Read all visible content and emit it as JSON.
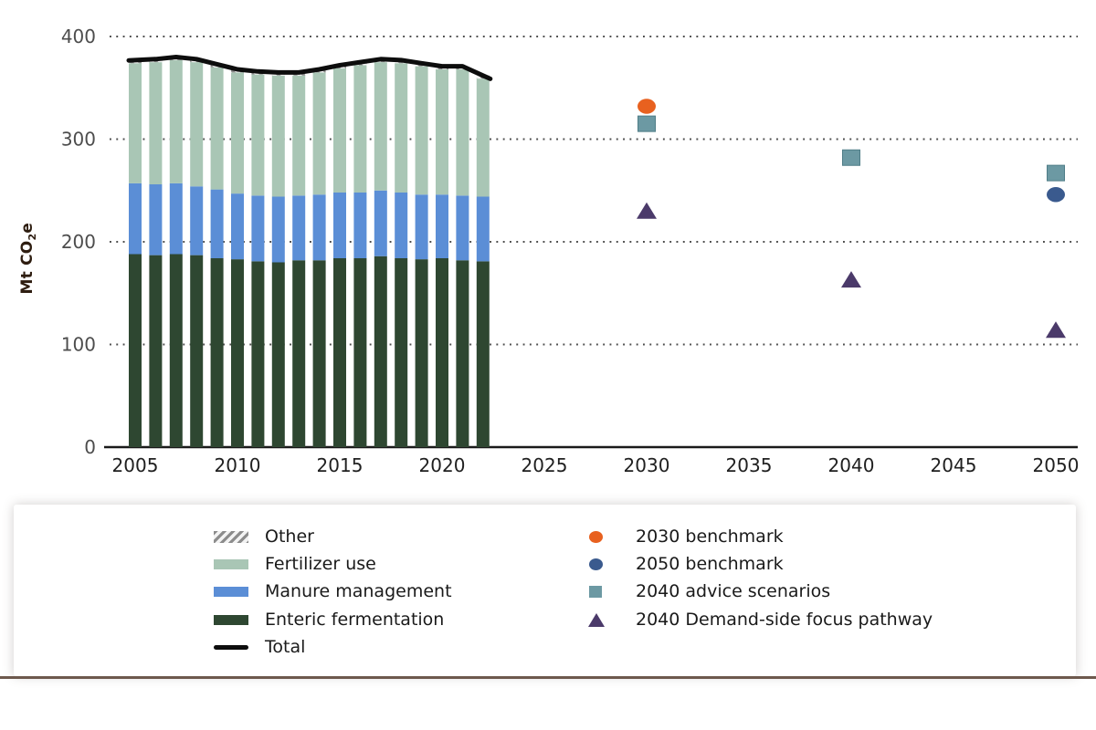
{
  "colors": {
    "enteric": "#2e4731",
    "manure": "#5b8ed6",
    "fertilizer": "#a9c6b5",
    "other_hatch": "#8c8c8c",
    "total_line": "#0d0d0d",
    "benchmark_2030": "#e8611f",
    "benchmark_2050": "#3a5a8e",
    "advice_2040": "#6c99a3",
    "advice_2040_border": "#4f7d87",
    "demand_side_2040": "#4b3a6a",
    "axis_line": "#1a1a1a",
    "grid_dots": "#4d4d4d",
    "y_tick_text": "#4d4d4d",
    "x_tick_text": "#202020",
    "bottom_rule": "#6d594d"
  },
  "y_axis_title": {
    "prefix": "Mt CO",
    "sub": "2",
    "suffix": "e"
  },
  "chart_data": {
    "type": "bar",
    "subtype": "stacked-bars-with-line-and-scatter",
    "ylabel": "Mt CO2e",
    "ylim": [
      0,
      400
    ],
    "xlim": [
      2003,
      2052
    ],
    "grid": "dotted horizontal at 100,200,300,400",
    "legend_position": "bottom card, two columns",
    "y_ticks": [
      400,
      300,
      200,
      100,
      0
    ],
    "x_ticks": [
      2005,
      2010,
      2015,
      2020,
      2025,
      2030,
      2035,
      2040,
      2045,
      2050
    ],
    "categories": [
      2005,
      2006,
      2007,
      2008,
      2009,
      2010,
      2011,
      2012,
      2013,
      2014,
      2015,
      2016,
      2017,
      2018,
      2019,
      2020,
      2021,
      2022
    ],
    "series": [
      {
        "name": "Enteric fermentation",
        "colorKey": "enteric",
        "values": [
          188,
          187,
          188,
          187,
          184,
          183,
          181,
          180,
          182,
          182,
          184,
          184,
          186,
          184,
          183,
          184,
          182,
          181
        ]
      },
      {
        "name": "Manure management",
        "colorKey": "manure",
        "values": [
          69,
          69,
          69,
          67,
          67,
          64,
          64,
          64,
          63,
          64,
          64,
          64,
          64,
          64,
          63,
          62,
          63,
          63
        ]
      },
      {
        "name": "Fertilizer use",
        "colorKey": "fertilizer",
        "values": [
          117,
          119,
          120,
          121,
          119,
          118,
          118,
          118,
          117,
          119,
          121,
          124,
          125,
          126,
          125,
          122,
          123,
          115
        ]
      },
      {
        "name": "Other",
        "colorKey": "hatch",
        "values": [
          3,
          3,
          3,
          3,
          3,
          3,
          3,
          3,
          3,
          3,
          3,
          3,
          3,
          3,
          3,
          3,
          3,
          3
        ]
      }
    ],
    "total_line": {
      "name": "Total",
      "colorKey": "total_line",
      "values": [
        377,
        378,
        380,
        378,
        373,
        368,
        366,
        365,
        365,
        368,
        372,
        375,
        378,
        377,
        374,
        371,
        371,
        362
      ]
    },
    "scatter_series": [
      {
        "name": "2030 benchmark",
        "marker": "circle",
        "colorKey": "benchmark_2030",
        "points": [
          {
            "x": 2030,
            "v": 332
          }
        ]
      },
      {
        "name": "2050 benchmark",
        "marker": "circle",
        "colorKey": "benchmark_2050",
        "points": [
          {
            "x": 2050,
            "v": 246
          }
        ]
      },
      {
        "name": "2040 advice scenarios",
        "marker": "square",
        "colorKey": "advice_2040",
        "points": [
          {
            "x": 2030,
            "v": 315
          },
          {
            "x": 2040,
            "v": 282
          },
          {
            "x": 2050,
            "v": 267
          }
        ]
      },
      {
        "name": "2040 Demand-side focus pathway",
        "marker": "triangle",
        "colorKey": "demand_side_2040",
        "points": [
          {
            "x": 2030,
            "v": 230
          },
          {
            "x": 2040,
            "v": 163
          },
          {
            "x": 2050,
            "v": 114
          }
        ]
      }
    ]
  },
  "legend": {
    "left": [
      {
        "label": "Other",
        "swatch": "hatch"
      },
      {
        "label": "Fertilizer use",
        "swatch": "fertilizer"
      },
      {
        "label": "Manure management",
        "swatch": "manure"
      },
      {
        "label": "Enteric fermentation",
        "swatch": "enteric"
      },
      {
        "label": "Total",
        "swatch": "line"
      }
    ],
    "right": [
      {
        "label": "2030 benchmark",
        "marker": "circle",
        "colorKey": "benchmark_2030"
      },
      {
        "label": "2050 benchmark",
        "marker": "circle",
        "colorKey": "benchmark_2050"
      },
      {
        "label": "2040 advice scenarios",
        "marker": "square",
        "colorKey": "advice_2040"
      },
      {
        "label": "2040 Demand-side focus pathway",
        "marker": "triangle",
        "colorKey": "demand_side_2040"
      }
    ]
  }
}
